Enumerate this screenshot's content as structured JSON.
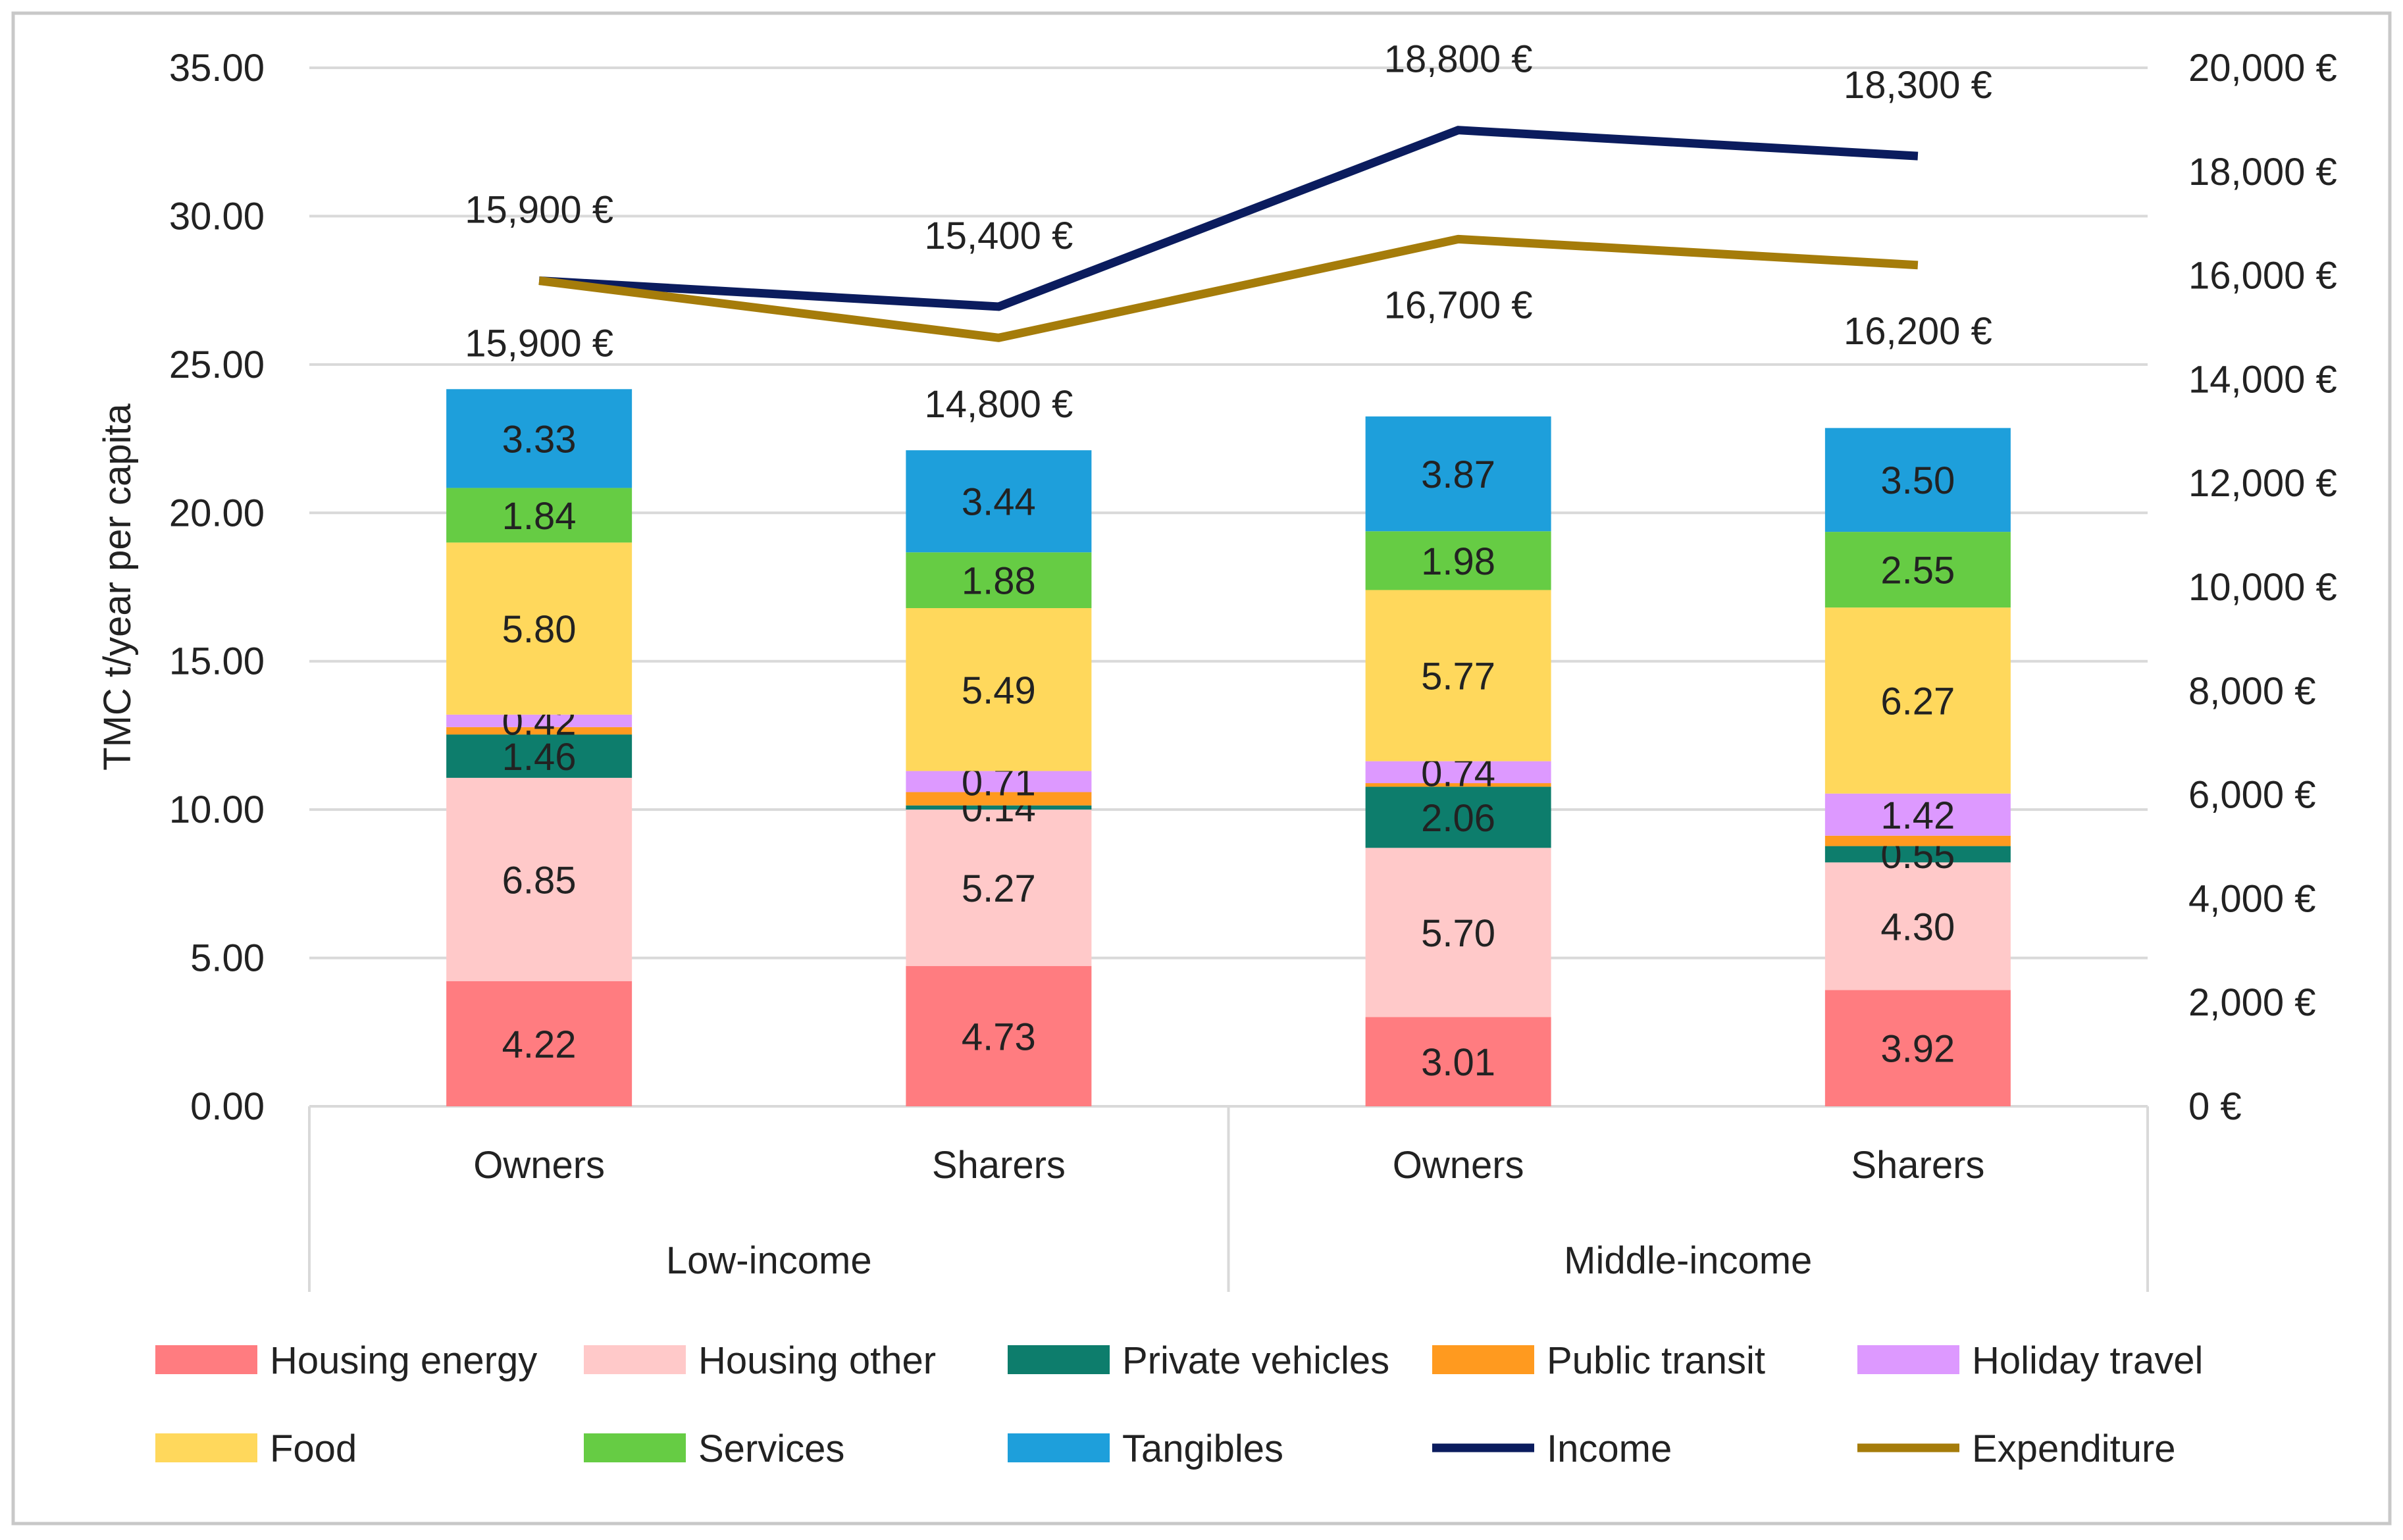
{
  "chart_data": {
    "type": "bar",
    "stacked": true,
    "ylabel": "TMC t/year per capita",
    "ylim": [
      0,
      35
    ],
    "yticks": [
      "0.00",
      "5.00",
      "10.00",
      "15.00",
      "20.00",
      "25.00",
      "30.00",
      "35.00"
    ],
    "y2lim": [
      0,
      20000
    ],
    "y2ticks": [
      "0 €",
      "2,000 €",
      "4,000 €",
      "6,000 €",
      "8,000 €",
      "10,000 €",
      "12,000 €",
      "14,000 €",
      "16,000 €",
      "18,000 €",
      "20,000 €"
    ],
    "categories": [
      "Owners",
      "Sharers",
      "Owners",
      "Sharers"
    ],
    "groups": [
      {
        "label": "Low-income",
        "span": [
          0,
          1
        ]
      },
      {
        "label": "Middle-income",
        "span": [
          2,
          3
        ]
      }
    ],
    "series": [
      {
        "name": "Housing energy",
        "color": "#ff7c80",
        "values": [
          4.22,
          4.73,
          3.01,
          3.92
        ],
        "labels": [
          "4.22",
          "4.73",
          "3.01",
          "3.92"
        ]
      },
      {
        "name": "Housing other",
        "color": "#ffc9c9",
        "values": [
          6.85,
          5.27,
          5.7,
          4.3
        ],
        "labels": [
          "6.85",
          "5.27",
          "5.70",
          "4.30"
        ]
      },
      {
        "name": "Private vehicles",
        "color": "#0d7d6c",
        "values": [
          1.46,
          0.14,
          2.06,
          0.55
        ],
        "labels": [
          "1.46",
          "0.14",
          "2.06",
          "0.55"
        ]
      },
      {
        "name": "Public transit",
        "color": "#ff9a1f",
        "values": [
          0.25,
          0.45,
          0.12,
          0.35
        ],
        "labels": [
          "",
          "",
          "",
          ""
        ]
      },
      {
        "name": "Holiday travel",
        "color": "#dd99ff",
        "values": [
          0.42,
          0.71,
          0.74,
          1.42
        ],
        "labels": [
          "0.42",
          "0.71",
          "0.74",
          "1.42"
        ]
      },
      {
        "name": "Food",
        "color": "#ffd85c",
        "values": [
          5.8,
          5.49,
          5.77,
          6.27
        ],
        "labels": [
          "5.80",
          "5.49",
          "5.77",
          "6.27"
        ]
      },
      {
        "name": "Services",
        "color": "#66cc44",
        "values": [
          1.84,
          1.88,
          1.98,
          2.55
        ],
        "labels": [
          "1.84",
          "1.88",
          "1.98",
          "2.55"
        ]
      },
      {
        "name": "Tangibles",
        "color": "#1e9fdb",
        "values": [
          3.33,
          3.44,
          3.87,
          3.5
        ],
        "labels": [
          "3.33",
          "3.44",
          "3.87",
          "3.50"
        ]
      }
    ],
    "lines": [
      {
        "name": "Income",
        "color": "#0b1c5e",
        "axis": "secondary",
        "values": [
          15900,
          15400,
          18800,
          18300
        ],
        "labels": [
          "15,900 €",
          "15,400 €",
          "18,800 €",
          "18,300 €"
        ]
      },
      {
        "name": "Expenditure",
        "color": "#a57c0a",
        "axis": "secondary",
        "values": [
          15900,
          14800,
          16700,
          16200
        ],
        "labels": [
          "15,900 €",
          "14,800 €",
          "16,700 €",
          "16,200 €"
        ]
      }
    ],
    "legend": [
      "Housing energy",
      "Housing other",
      "Private vehicles",
      "Public transit",
      "Holiday travel",
      "Food",
      "Services",
      "Tangibles",
      "Income",
      "Expenditure"
    ],
    "legend_position": "bottom",
    "grid": true
  }
}
